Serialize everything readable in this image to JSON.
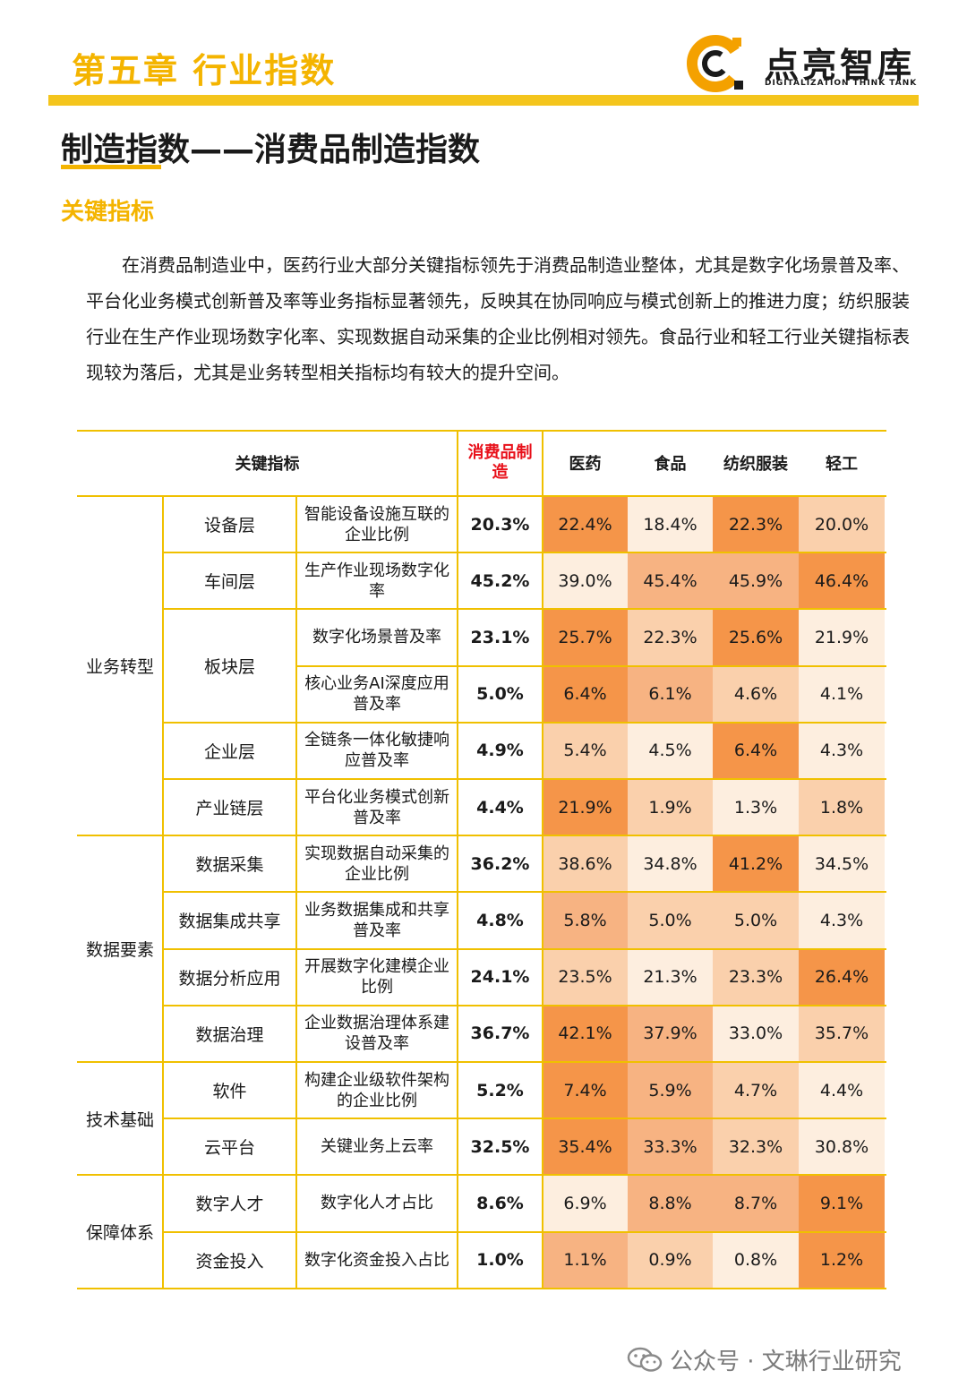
{
  "header": {
    "chapter": "第五章  行业指数",
    "logo_cn": "点亮智库",
    "logo_en": "DIGITALIZATION THINK TANK"
  },
  "section_title": "制造指数——消费品制造指数",
  "subheading": "关键指标",
  "paragraph": "在消费品制造业中，医药行业大部分关键指标领先于消费品制造业整体，尤其是数字化场景普及率、平台化业务模式创新普及率等业务指标显著领先，反映其在协同响应与模式创新上的推进力度；纺织服装行业在生产作业现场数字化率、实现数据自动采集的企业比例相对领先。食品行业和轻工行业关键指标表现较为落后，尤其是业务转型相关指标均有较大的提升空间。",
  "table": {
    "headers": {
      "indicator": "关键指标",
      "total": "消费品制造",
      "cols": [
        "医药",
        "食品",
        "纺织服装",
        "轻工"
      ]
    },
    "categories": [
      {
        "name": "业务转型",
        "rows": 6
      },
      {
        "name": "数据要素",
        "rows": 4
      },
      {
        "name": "技术基础",
        "rows": 2
      },
      {
        "name": "保障体系",
        "rows": 2
      }
    ],
    "layers": [
      {
        "name": "设备层",
        "rows": 1
      },
      {
        "name": "车间层",
        "rows": 1
      },
      {
        "name": "板块层",
        "rows": 2
      },
      {
        "name": "企业层",
        "rows": 1
      },
      {
        "name": "产业链层",
        "rows": 1
      },
      {
        "name": "数据采集",
        "rows": 1
      },
      {
        "name": "数据集成共享",
        "rows": 1
      },
      {
        "name": "数据分析应用",
        "rows": 1
      },
      {
        "name": "数据治理",
        "rows": 1
      },
      {
        "name": "软件",
        "rows": 1
      },
      {
        "name": "云平台",
        "rows": 1
      },
      {
        "name": "数字人才",
        "rows": 1
      },
      {
        "name": "资金投入",
        "rows": 1
      }
    ],
    "rows": [
      {
        "indicator": "智能设备设施互联的企业比例",
        "total": "20.3%",
        "values": [
          "22.4%",
          "18.4%",
          "22.3%",
          "20.0%"
        ],
        "heat": [
          3,
          0,
          3,
          1
        ]
      },
      {
        "indicator": "生产作业现场数字化率",
        "total": "45.2%",
        "values": [
          "39.0%",
          "45.4%",
          "45.9%",
          "46.4%"
        ],
        "heat": [
          0,
          2,
          2,
          3
        ]
      },
      {
        "indicator": "数字化场景普及率",
        "total": "23.1%",
        "values": [
          "25.7%",
          "22.3%",
          "25.6%",
          "21.9%"
        ],
        "heat": [
          3,
          1,
          3,
          0
        ]
      },
      {
        "indicator": "核心业务AI深度应用普及率",
        "total": "5.0%",
        "values": [
          "6.4%",
          "6.1%",
          "4.6%",
          "4.1%"
        ],
        "heat": [
          3,
          2,
          1,
          0
        ]
      },
      {
        "indicator": "全链条一体化敏捷响应普及率",
        "total": "4.9%",
        "values": [
          "5.4%",
          "4.5%",
          "6.4%",
          "4.3%"
        ],
        "heat": [
          1,
          0,
          3,
          0
        ]
      },
      {
        "indicator": "平台化业务模式创新普及率",
        "total": "4.4%",
        "values": [
          "21.9%",
          "1.9%",
          "1.3%",
          "1.8%"
        ],
        "heat": [
          3,
          1,
          0,
          1
        ]
      },
      {
        "indicator": "实现数据自动采集的企业比例",
        "total": "36.2%",
        "values": [
          "38.6%",
          "34.8%",
          "41.2%",
          "34.5%"
        ],
        "heat": [
          1,
          0,
          3,
          0
        ]
      },
      {
        "indicator": "业务数据集成和共享普及率",
        "total": "4.8%",
        "values": [
          "5.8%",
          "5.0%",
          "5.0%",
          "4.3%"
        ],
        "heat": [
          2,
          1,
          1,
          0
        ]
      },
      {
        "indicator": "开展数字化建模企业比例",
        "total": "24.1%",
        "values": [
          "23.5%",
          "21.3%",
          "23.3%",
          "26.4%"
        ],
        "heat": [
          1,
          0,
          1,
          3
        ]
      },
      {
        "indicator": "企业数据治理体系建设普及率",
        "total": "36.7%",
        "values": [
          "42.1%",
          "37.9%",
          "33.0%",
          "35.7%"
        ],
        "heat": [
          3,
          2,
          0,
          1
        ]
      },
      {
        "indicator": "构建企业级软件架构的企业比例",
        "total": "5.2%",
        "values": [
          "7.4%",
          "5.9%",
          "4.7%",
          "4.4%"
        ],
        "heat": [
          3,
          2,
          1,
          0
        ]
      },
      {
        "indicator": "关键业务上云率",
        "total": "32.5%",
        "values": [
          "35.4%",
          "33.3%",
          "32.3%",
          "30.8%"
        ],
        "heat": [
          3,
          2,
          1,
          0
        ]
      },
      {
        "indicator": "数字化人才占比",
        "total": "8.6%",
        "values": [
          "6.9%",
          "8.8%",
          "8.7%",
          "9.1%"
        ],
        "heat": [
          0,
          2,
          2,
          3
        ]
      },
      {
        "indicator": "数字化资金投入占比",
        "total": "1.0%",
        "values": [
          "1.1%",
          "0.9%",
          "0.8%",
          "1.2%"
        ],
        "heat": [
          2,
          1,
          0,
          3
        ]
      }
    ],
    "heat_colors": [
      "#fdeedf",
      "#fad0ac",
      "#f7b382",
      "#f59549"
    ]
  },
  "watermark": "公众号 · 文琳行业研究"
}
